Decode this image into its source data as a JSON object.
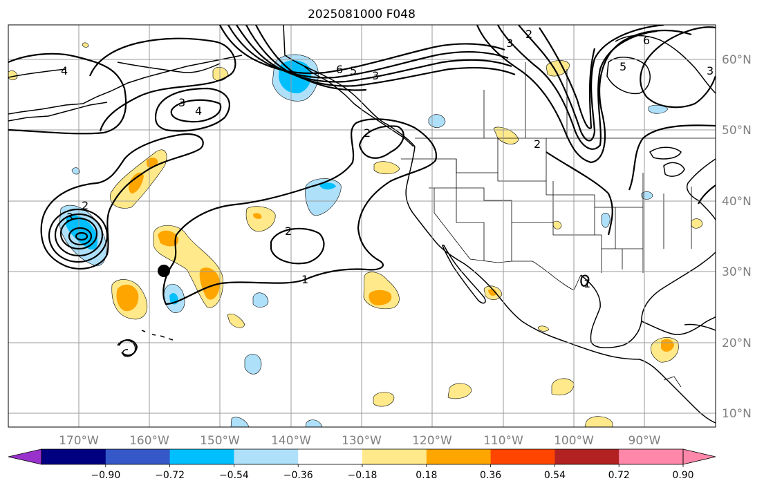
{
  "title": "2025081000 F048",
  "colors": {
    "neg_extend": "#9932cc",
    "levels": [
      "#000080",
      "#3558c8",
      "#00bfff",
      "#aee0fa",
      "#ffffff",
      "#ffe98a",
      "#ffa500",
      "#ff4500",
      "#b22222",
      "#ff88aa"
    ],
    "pos_extend": "#ff88aa"
  },
  "colorbar": {
    "tick_labels": [
      "−0.90",
      "−0.72",
      "−0.54",
      "−0.36",
      "−0.18",
      "0.18",
      "0.36",
      "0.54",
      "0.72",
      "0.90"
    ]
  },
  "map": {
    "lon_labels": [
      "170°W",
      "160°W",
      "150°W",
      "140°W",
      "130°W",
      "120°W",
      "110°W",
      "100°W",
      "90°W"
    ],
    "lat_labels": [
      "60°N",
      "50°N",
      "40°N",
      "30°N",
      "20°N",
      "10°N"
    ],
    "contour_labels": [
      "4",
      "3",
      "4",
      "2",
      "3",
      "6",
      "5",
      "3",
      "2",
      "2",
      "3",
      "2",
      "1",
      "2",
      "6",
      "5",
      "3",
      "1"
    ],
    "marker": "storm-center-dot"
  }
}
